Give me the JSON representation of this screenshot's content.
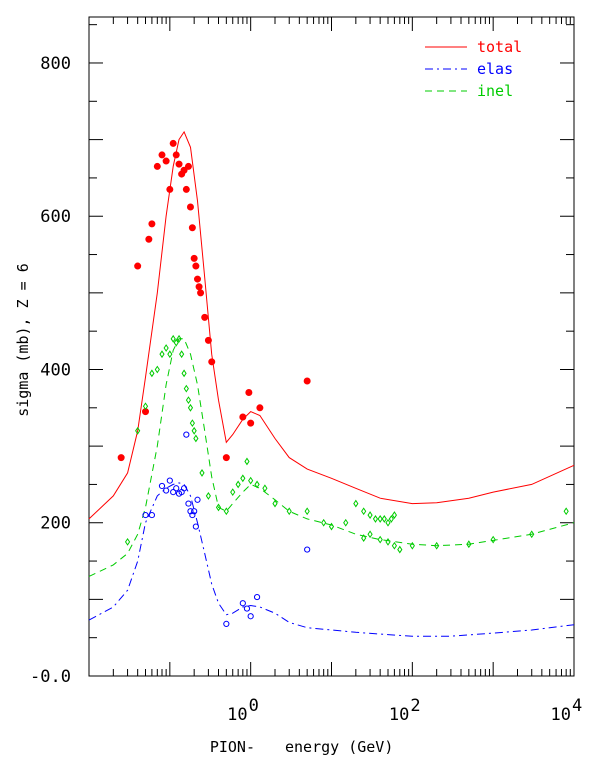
{
  "chart_data": {
    "type": "line",
    "xlabel_particle": "PION-",
    "xlabel_quantity": "energy (GeV)",
    "ylabel": "sigma (mb), Z =   6",
    "x_scale": "log",
    "xlim": [
      0.01,
      10000
    ],
    "ylim": [
      -0.0,
      860
    ],
    "x_ticks": [
      {
        "value": 1,
        "base": "10",
        "exp": "0"
      },
      {
        "value": 100,
        "base": "10",
        "exp": "2"
      },
      {
        "value": 10000,
        "base": "10",
        "exp": "4"
      }
    ],
    "y_ticks": [
      {
        "value": 0,
        "label": "-0.0"
      },
      {
        "value": 200,
        "label": "200"
      },
      {
        "value": 400,
        "label": "400"
      },
      {
        "value": 600,
        "label": "600"
      },
      {
        "value": 800,
        "label": "800"
      }
    ],
    "legend": [
      {
        "name": "total",
        "color": "#ff0000",
        "dash": "solid"
      },
      {
        "name": "elas",
        "color": "#0000ff",
        "dash": "dashdot"
      },
      {
        "name": "inel",
        "color": "#00cc00",
        "dash": "dashed"
      }
    ],
    "series": [
      {
        "name": "total",
        "color": "#ff0000",
        "dash": "solid",
        "curve": [
          [
            0.01,
            205
          ],
          [
            0.02,
            235
          ],
          [
            0.03,
            265
          ],
          [
            0.04,
            320
          ],
          [
            0.05,
            390
          ],
          [
            0.07,
            500
          ],
          [
            0.09,
            600
          ],
          [
            0.11,
            665
          ],
          [
            0.13,
            700
          ],
          [
            0.15,
            710
          ],
          [
            0.18,
            690
          ],
          [
            0.22,
            620
          ],
          [
            0.27,
            520
          ],
          [
            0.33,
            420
          ],
          [
            0.4,
            360
          ],
          [
            0.5,
            305
          ],
          [
            0.6,
            315
          ],
          [
            0.8,
            335
          ],
          [
            1.0,
            345
          ],
          [
            1.3,
            340
          ],
          [
            2,
            310
          ],
          [
            3,
            285
          ],
          [
            5,
            270
          ],
          [
            10,
            258
          ],
          [
            20,
            245
          ],
          [
            40,
            232
          ],
          [
            100,
            225
          ],
          [
            200,
            226
          ],
          [
            500,
            232
          ],
          [
            1000,
            240
          ],
          [
            3000,
            250
          ],
          [
            10000,
            275
          ]
        ],
        "points": [
          [
            0.025,
            285
          ],
          [
            0.04,
            535
          ],
          [
            0.05,
            345
          ],
          [
            0.055,
            570
          ],
          [
            0.06,
            590
          ],
          [
            0.07,
            665
          ],
          [
            0.08,
            680
          ],
          [
            0.09,
            672
          ],
          [
            0.1,
            635
          ],
          [
            0.11,
            695
          ],
          [
            0.12,
            680
          ],
          [
            0.13,
            668
          ],
          [
            0.14,
            655
          ],
          [
            0.15,
            660
          ],
          [
            0.16,
            635
          ],
          [
            0.17,
            665
          ],
          [
            0.18,
            612
          ],
          [
            0.19,
            585
          ],
          [
            0.2,
            545
          ],
          [
            0.21,
            535
          ],
          [
            0.22,
            518
          ],
          [
            0.23,
            508
          ],
          [
            0.24,
            500
          ],
          [
            0.27,
            468
          ],
          [
            0.3,
            438
          ],
          [
            0.33,
            410
          ],
          [
            0.5,
            285
          ],
          [
            0.8,
            338
          ],
          [
            0.95,
            370
          ],
          [
            1.0,
            330
          ],
          [
            1.3,
            350
          ],
          [
            5,
            385
          ]
        ]
      },
      {
        "name": "elas",
        "color": "#0000ff",
        "dash": "dashdot",
        "curve": [
          [
            0.01,
            73
          ],
          [
            0.02,
            90
          ],
          [
            0.03,
            112
          ],
          [
            0.04,
            150
          ],
          [
            0.05,
            200
          ],
          [
            0.07,
            235
          ],
          [
            0.09,
            245
          ],
          [
            0.11,
            250
          ],
          [
            0.13,
            252
          ],
          [
            0.15,
            250
          ],
          [
            0.18,
            235
          ],
          [
            0.22,
            200
          ],
          [
            0.27,
            160
          ],
          [
            0.33,
            120
          ],
          [
            0.4,
            95
          ],
          [
            0.5,
            80
          ],
          [
            0.6,
            82
          ],
          [
            0.8,
            90
          ],
          [
            1.0,
            92
          ],
          [
            1.3,
            90
          ],
          [
            2,
            82
          ],
          [
            3,
            70
          ],
          [
            5,
            63
          ],
          [
            10,
            60
          ],
          [
            20,
            57
          ],
          [
            50,
            54
          ],
          [
            100,
            52
          ],
          [
            300,
            52
          ],
          [
            1000,
            56
          ],
          [
            3000,
            60
          ],
          [
            10000,
            67
          ]
        ],
        "points": [
          [
            0.05,
            210
          ],
          [
            0.06,
            210
          ],
          [
            0.08,
            248
          ],
          [
            0.09,
            242
          ],
          [
            0.1,
            255
          ],
          [
            0.11,
            240
          ],
          [
            0.12,
            245
          ],
          [
            0.13,
            238
          ],
          [
            0.14,
            240
          ],
          [
            0.15,
            245
          ],
          [
            0.16,
            315
          ],
          [
            0.17,
            225
          ],
          [
            0.18,
            215
          ],
          [
            0.19,
            210
          ],
          [
            0.2,
            215
          ],
          [
            0.21,
            195
          ],
          [
            0.22,
            230
          ],
          [
            0.5,
            68
          ],
          [
            0.8,
            95
          ],
          [
            0.9,
            88
          ],
          [
            1.0,
            78
          ],
          [
            1.2,
            103
          ],
          [
            5,
            165
          ]
        ]
      },
      {
        "name": "inel",
        "color": "#00cc00",
        "dash": "dashed",
        "curve": [
          [
            0.01,
            130
          ],
          [
            0.02,
            145
          ],
          [
            0.03,
            160
          ],
          [
            0.04,
            185
          ],
          [
            0.05,
            220
          ],
          [
            0.07,
            300
          ],
          [
            0.09,
            380
          ],
          [
            0.11,
            425
          ],
          [
            0.13,
            440
          ],
          [
            0.15,
            440
          ],
          [
            0.18,
            420
          ],
          [
            0.22,
            380
          ],
          [
            0.27,
            320
          ],
          [
            0.33,
            260
          ],
          [
            0.4,
            220
          ],
          [
            0.5,
            215
          ],
          [
            0.6,
            225
          ],
          [
            0.8,
            240
          ],
          [
            1.0,
            250
          ],
          [
            1.3,
            245
          ],
          [
            2,
            230
          ],
          [
            3,
            215
          ],
          [
            5,
            205
          ],
          [
            10,
            197
          ],
          [
            20,
            185
          ],
          [
            40,
            178
          ],
          [
            100,
            172
          ],
          [
            200,
            170
          ],
          [
            500,
            172
          ],
          [
            1000,
            177
          ],
          [
            3000,
            185
          ],
          [
            10000,
            200
          ]
        ],
        "points": [
          [
            0.03,
            175
          ],
          [
            0.04,
            320
          ],
          [
            0.05,
            352
          ],
          [
            0.06,
            395
          ],
          [
            0.07,
            400
          ],
          [
            0.08,
            420
          ],
          [
            0.09,
            428
          ],
          [
            0.1,
            420
          ],
          [
            0.11,
            440
          ],
          [
            0.12,
            435
          ],
          [
            0.13,
            440
          ],
          [
            0.14,
            420
          ],
          [
            0.15,
            395
          ],
          [
            0.16,
            375
          ],
          [
            0.17,
            360
          ],
          [
            0.18,
            350
          ],
          [
            0.19,
            330
          ],
          [
            0.2,
            320
          ],
          [
            0.21,
            310
          ],
          [
            0.25,
            265
          ],
          [
            0.3,
            235
          ],
          [
            0.4,
            220
          ],
          [
            0.5,
            215
          ],
          [
            0.6,
            240
          ],
          [
            0.7,
            250
          ],
          [
            0.8,
            258
          ],
          [
            0.9,
            280
          ],
          [
            1.0,
            255
          ],
          [
            1.2,
            250
          ],
          [
            1.5,
            245
          ],
          [
            2,
            225
          ],
          [
            3,
            215
          ],
          [
            5,
            215
          ],
          [
            8,
            200
          ],
          [
            10,
            195
          ],
          [
            15,
            200
          ],
          [
            20,
            225
          ],
          [
            25,
            215
          ],
          [
            30,
            210
          ],
          [
            35,
            205
          ],
          [
            40,
            205
          ],
          [
            45,
            205
          ],
          [
            50,
            200
          ],
          [
            55,
            205
          ],
          [
            60,
            210
          ],
          [
            25,
            180
          ],
          [
            30,
            185
          ],
          [
            40,
            178
          ],
          [
            50,
            175
          ],
          [
            60,
            170
          ],
          [
            70,
            165
          ],
          [
            100,
            170
          ],
          [
            200,
            170
          ],
          [
            500,
            172
          ],
          [
            1000,
            178
          ],
          [
            3000,
            185
          ],
          [
            8000,
            215
          ]
        ]
      }
    ]
  }
}
